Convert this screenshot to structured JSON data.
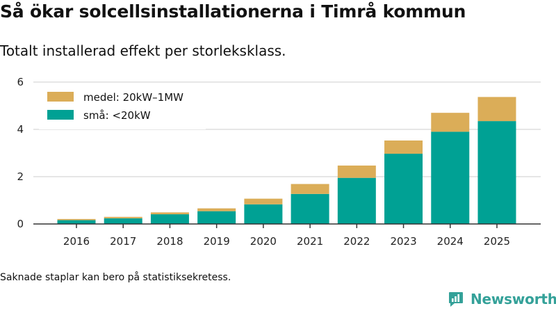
{
  "header": {
    "title": "Så ökar solcellsinstallationerna i Timrå kommun",
    "subtitle": "Totalt installerad effekt per storleksklass."
  },
  "footer": {
    "note": "Saknade staplar kan bero på statistiksekretess.",
    "brand": "Newsworthy",
    "brand_icon": "newsworthy-logo-icon"
  },
  "colors": {
    "small": "#00a194",
    "medium": "#dbad58",
    "grid": "#dddddd",
    "axis": "#333333",
    "brand": "#34a199"
  },
  "chart_data": {
    "type": "bar",
    "stacked": true,
    "title": "Så ökar solcellsinstallationerna i Timrå kommun",
    "subtitle": "Totalt installerad effekt per storleksklass.",
    "xlabel": "",
    "ylabel": "",
    "ylim": [
      0,
      6
    ],
    "yticks": [
      0,
      2,
      4,
      6
    ],
    "grid": true,
    "legend_position": "top-left",
    "categories": [
      "2016",
      "2017",
      "2018",
      "2019",
      "2020",
      "2021",
      "2022",
      "2023",
      "2024",
      "2025"
    ],
    "series": [
      {
        "name": "små: <20kW",
        "color": "#00a194",
        "values": [
          0.16,
          0.24,
          0.41,
          0.54,
          0.83,
          1.27,
          1.95,
          2.97,
          3.9,
          4.35
        ]
      },
      {
        "name": "medel: 20kW–1MW",
        "color": "#dbad58",
        "values": [
          0.05,
          0.06,
          0.08,
          0.12,
          0.24,
          0.42,
          0.52,
          0.56,
          0.8,
          1.02
        ]
      }
    ],
    "legend": [
      "medel: 20kW–1MW",
      "små: <20kW"
    ]
  }
}
